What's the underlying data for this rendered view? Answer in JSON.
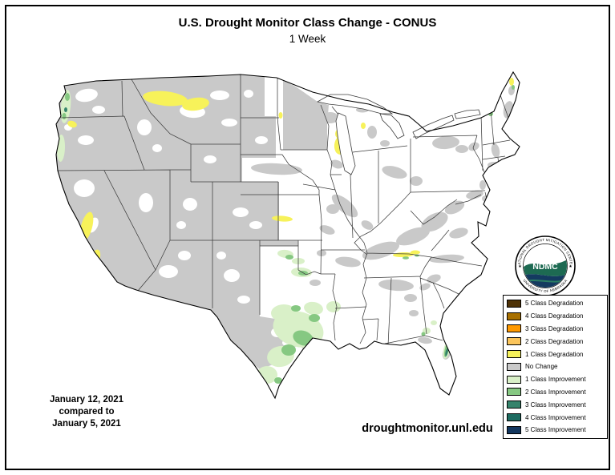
{
  "header": {
    "title": "U.S. Drought Monitor Class Change - CONUS",
    "subtitle": "1 Week"
  },
  "annotations": {
    "date_line1": "January 12, 2021",
    "date_line2": "compared to",
    "date_line3": "January 5, 2021",
    "website": "droughtmonitor.unl.edu"
  },
  "logo": {
    "acronym": "NDMC",
    "arc_top": "NATIONAL DROUGHT MITIGATION CENTER",
    "arc_bottom": "UNIVERSITY OF NEBRASKA"
  },
  "legend": {
    "items": [
      {
        "key": "deg5",
        "label": "5 Class Degradation",
        "color": "#4e3206"
      },
      {
        "key": "deg4",
        "label": "4 Class Degradation",
        "color": "#a87000"
      },
      {
        "key": "deg3",
        "label": "3 Class Degradation",
        "color": "#ff9900"
      },
      {
        "key": "deg2",
        "label": "2 Class Degradation",
        "color": "#fbc55b"
      },
      {
        "key": "deg1",
        "label": "1 Class Degradation",
        "color": "#f7f25a"
      },
      {
        "key": "nochange",
        "label": "No Change",
        "color": "#c9c9c9"
      },
      {
        "key": "imp1",
        "label": "1 Class Improvement",
        "color": "#d9f0c8"
      },
      {
        "key": "imp2",
        "label": "2 Class Improvement",
        "color": "#86c882"
      },
      {
        "key": "imp3",
        "label": "3 Class Improvement",
        "color": "#35836b"
      },
      {
        "key": "imp4",
        "label": "4 Class Improvement",
        "color": "#1d6b60"
      },
      {
        "key": "imp5",
        "label": "5 Class Improvement",
        "color": "#12365e"
      }
    ]
  }
}
